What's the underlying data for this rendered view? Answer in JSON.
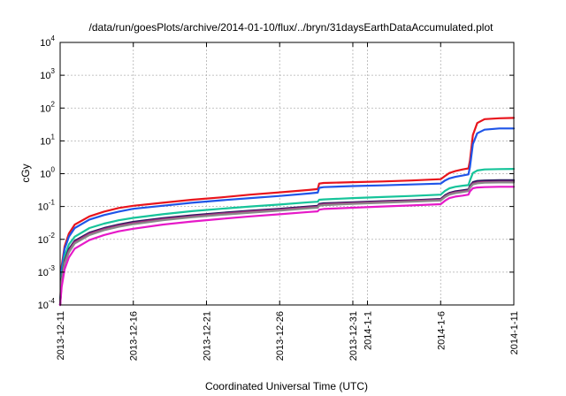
{
  "chart_data": {
    "type": "line",
    "title": "/data/run/goesPlots/archive/2014-01-10/flux/../bryn/31daysEarthDataAccumulated.plot",
    "xlabel": "Coordinated Universal Time (UTC)",
    "ylabel": "cGy",
    "yscale": "log",
    "ylim": [
      0.0001,
      10000
    ],
    "xlim": [
      0,
      31
    ],
    "grid": true,
    "x_ticks": [
      {
        "x": 0,
        "label": "2013-12-11"
      },
      {
        "x": 5,
        "label": "2013-12-16"
      },
      {
        "x": 10,
        "label": "2013-12-21"
      },
      {
        "x": 15,
        "label": "2013-12-26"
      },
      {
        "x": 20,
        "label": "2013-12-31"
      },
      {
        "x": 21,
        "label": "2014-1-1"
      },
      {
        "x": 26,
        "label": "2014-1-6"
      },
      {
        "x": 31,
        "label": "2014-1-11"
      }
    ],
    "y_ticks": [
      {
        "exp": -4
      },
      {
        "exp": -3
      },
      {
        "exp": -2
      },
      {
        "exp": -1
      },
      {
        "exp": 0
      },
      {
        "exp": 1
      },
      {
        "exp": 2
      },
      {
        "exp": 3
      },
      {
        "exp": 4
      }
    ],
    "series": [
      {
        "color": "#e8141c",
        "x": [
          0,
          0.1,
          0.3,
          0.6,
          1,
          2,
          3,
          4,
          5,
          7,
          9,
          11,
          13,
          15,
          17,
          17.6,
          17.7,
          18,
          20,
          22,
          24,
          26,
          26.3,
          26.6,
          27,
          27.5,
          27.9,
          28,
          28.2,
          28.5,
          29,
          30,
          31
        ],
        "y": [
          0.0001,
          0.0015,
          0.006,
          0.015,
          0.028,
          0.05,
          0.07,
          0.09,
          0.105,
          0.13,
          0.16,
          0.19,
          0.23,
          0.27,
          0.32,
          0.34,
          0.5,
          0.52,
          0.55,
          0.58,
          0.62,
          0.68,
          0.85,
          1.05,
          1.2,
          1.35,
          1.45,
          2.5,
          15,
          35,
          46,
          49,
          50
        ]
      },
      {
        "color": "#1f55e8",
        "x": [
          0,
          0.1,
          0.3,
          0.6,
          1,
          2,
          3,
          4,
          5,
          7,
          9,
          11,
          13,
          15,
          17,
          17.6,
          17.7,
          18,
          20,
          22,
          24,
          26,
          26.3,
          26.6,
          27,
          27.5,
          27.9,
          28,
          28.2,
          28.5,
          29,
          30,
          31
        ],
        "y": [
          0.0001,
          0.0012,
          0.005,
          0.012,
          0.022,
          0.04,
          0.055,
          0.07,
          0.085,
          0.105,
          0.13,
          0.155,
          0.18,
          0.21,
          0.25,
          0.265,
          0.37,
          0.39,
          0.42,
          0.44,
          0.47,
          0.5,
          0.62,
          0.72,
          0.8,
          0.88,
          0.95,
          1.6,
          8,
          17,
          22,
          24,
          24
        ]
      },
      {
        "color": "#16c49a",
        "x": [
          0,
          0.1,
          0.3,
          0.6,
          1,
          2,
          3,
          4,
          5,
          7,
          9,
          11,
          13,
          15,
          17,
          17.6,
          17.7,
          18,
          20,
          22,
          24,
          26,
          26.3,
          26.6,
          27,
          27.5,
          27.9,
          28,
          28.2,
          28.5,
          29,
          30,
          31
        ],
        "y": [
          0.0001,
          0.0008,
          0.003,
          0.007,
          0.012,
          0.022,
          0.03,
          0.038,
          0.045,
          0.058,
          0.072,
          0.085,
          0.1,
          0.115,
          0.135,
          0.14,
          0.16,
          0.165,
          0.18,
          0.195,
          0.21,
          0.23,
          0.3,
          0.36,
          0.4,
          0.43,
          0.45,
          0.62,
          1.05,
          1.25,
          1.35,
          1.38,
          1.4
        ]
      },
      {
        "color": "#2a1a5e",
        "x": [
          0,
          0.1,
          0.3,
          0.6,
          1,
          2,
          3,
          4,
          5,
          7,
          9,
          11,
          13,
          15,
          17,
          17.6,
          17.7,
          18,
          20,
          22,
          24,
          26,
          26.3,
          26.6,
          27,
          27.5,
          27.9,
          28,
          28.2,
          28.5,
          29,
          30,
          31
        ],
        "y": [
          0.0001,
          0.0006,
          0.0022,
          0.005,
          0.009,
          0.016,
          0.022,
          0.028,
          0.034,
          0.044,
          0.054,
          0.064,
          0.075,
          0.085,
          0.1,
          0.105,
          0.12,
          0.125,
          0.135,
          0.145,
          0.155,
          0.17,
          0.22,
          0.26,
          0.29,
          0.31,
          0.33,
          0.42,
          0.55,
          0.6,
          0.62,
          0.63,
          0.63
        ]
      },
      {
        "color": "#a83080",
        "x": [
          0,
          0.1,
          0.3,
          0.6,
          1,
          2,
          3,
          4,
          5,
          7,
          9,
          11,
          13,
          15,
          17,
          17.6,
          17.7,
          18,
          20,
          22,
          24,
          26,
          26.3,
          26.6,
          27,
          27.5,
          27.9,
          28,
          28.2,
          28.5,
          29,
          30,
          31
        ],
        "y": [
          0.0001,
          0.00055,
          0.002,
          0.0045,
          0.0082,
          0.0148,
          0.0205,
          0.026,
          0.0315,
          0.041,
          0.05,
          0.06,
          0.07,
          0.08,
          0.094,
          0.098,
          0.112,
          0.117,
          0.127,
          0.137,
          0.147,
          0.16,
          0.205,
          0.245,
          0.27,
          0.29,
          0.31,
          0.39,
          0.5,
          0.54,
          0.56,
          0.57,
          0.57
        ]
      },
      {
        "color": "#8a8a8a",
        "x": [
          0,
          0.1,
          0.3,
          0.6,
          1,
          2,
          3,
          4,
          5,
          7,
          9,
          11,
          13,
          15,
          17,
          17.6,
          17.7,
          18,
          20,
          22,
          24,
          26,
          26.3,
          26.6,
          27,
          27.5,
          27.9,
          28,
          28.2,
          28.5,
          29,
          30,
          31
        ],
        "y": [
          0.0001,
          0.0005,
          0.0018,
          0.004,
          0.0075,
          0.0135,
          0.019,
          0.024,
          0.029,
          0.038,
          0.047,
          0.056,
          0.065,
          0.075,
          0.088,
          0.092,
          0.105,
          0.11,
          0.12,
          0.13,
          0.14,
          0.152,
          0.195,
          0.23,
          0.255,
          0.275,
          0.295,
          0.37,
          0.47,
          0.51,
          0.53,
          0.54,
          0.54
        ]
      },
      {
        "color": "#e619c8",
        "x": [
          0,
          0.1,
          0.3,
          0.6,
          1,
          2,
          3,
          4,
          5,
          7,
          9,
          11,
          13,
          15,
          17,
          17.6,
          17.7,
          18,
          20,
          22,
          24,
          26,
          26.3,
          26.6,
          27,
          27.5,
          27.9,
          28,
          28.2,
          28.5,
          29,
          30,
          31
        ],
        "y": [
          0.0001,
          0.00035,
          0.0012,
          0.0028,
          0.0052,
          0.0095,
          0.0135,
          0.0175,
          0.021,
          0.028,
          0.035,
          0.042,
          0.05,
          0.058,
          0.068,
          0.071,
          0.08,
          0.084,
          0.092,
          0.1,
          0.108,
          0.118,
          0.15,
          0.18,
          0.2,
          0.215,
          0.23,
          0.29,
          0.36,
          0.38,
          0.39,
          0.4,
          0.4
        ]
      }
    ]
  }
}
